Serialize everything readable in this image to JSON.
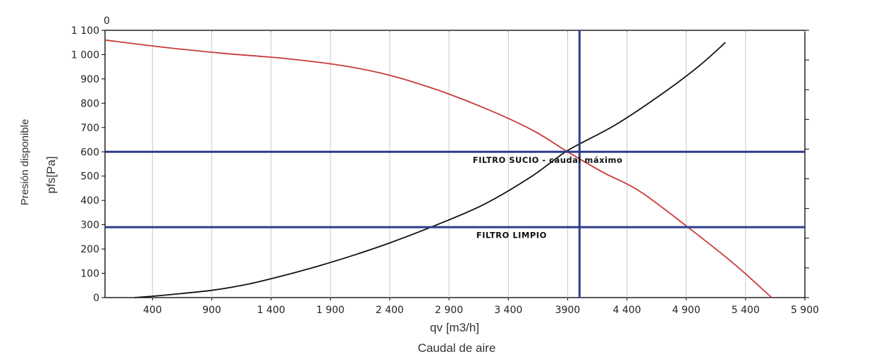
{
  "chart_data": {
    "type": "line",
    "top_axis_label": "0",
    "xlabel": "qv [m3/h]",
    "xlabel_secondary": "Caudal de aire",
    "ylabel": "pfs[Pa]",
    "ylabel_secondary": "Presión disponible",
    "xlim": [
      0,
      5900
    ],
    "ylim": [
      0,
      1100
    ],
    "x_ticks": [
      {
        "value": 400,
        "label": "400"
      },
      {
        "value": 900,
        "label": "900"
      },
      {
        "value": 1400,
        "label": "1 400"
      },
      {
        "value": 1900,
        "label": "1 900"
      },
      {
        "value": 2400,
        "label": "2 400"
      },
      {
        "value": 2900,
        "label": "2 900"
      },
      {
        "value": 3400,
        "label": "3 400"
      },
      {
        "value": 3900,
        "label": "3900"
      },
      {
        "value": 4400,
        "label": "4 400"
      },
      {
        "value": 4900,
        "label": "4 900"
      },
      {
        "value": 5400,
        "label": "5 400"
      },
      {
        "value": 5900,
        "label": "5 900"
      }
    ],
    "y_ticks": [
      {
        "value": 0,
        "label": "0"
      },
      {
        "value": 100,
        "label": "100"
      },
      {
        "value": 200,
        "label": "200"
      },
      {
        "value": 300,
        "label": "300"
      },
      {
        "value": 400,
        "label": "400"
      },
      {
        "value": 500,
        "label": "500"
      },
      {
        "value": 600,
        "label": "600"
      },
      {
        "value": 700,
        "label": "700"
      },
      {
        "value": 800,
        "label": "800"
      },
      {
        "value": 900,
        "label": "900"
      },
      {
        "value": 1000,
        "label": "1 000"
      },
      {
        "value": 1100,
        "label": "1 100"
      }
    ],
    "series": [
      {
        "color": "#c83a3a",
        "x": [
          0,
          500,
          1000,
          1500,
          2000,
          2400,
          2800,
          3200,
          3600,
          3900,
          4200,
          4500,
          4900,
          5300,
          5620
        ],
        "y": [
          1060,
          1030,
          1005,
          985,
          955,
          915,
          855,
          780,
          690,
          600,
          515,
          440,
          295,
          140,
          0
        ]
      },
      {
        "color": "#111111",
        "x": [
          250,
          500,
          900,
          1200,
          1500,
          1800,
          2100,
          2400,
          2800,
          3200,
          3600,
          3900,
          4300,
          4700,
          5000,
          5230
        ],
        "y": [
          0,
          10,
          30,
          55,
          90,
          130,
          175,
          225,
          300,
          385,
          500,
          605,
          710,
          840,
          950,
          1050
        ]
      }
    ],
    "reference_lines": {
      "color": "#2e3c8c",
      "horizontal": [
        600,
        290
      ],
      "vertical": [
        4000
      ]
    },
    "annotations": [
      {
        "text": "FILTRO SUCIO - caudal máximo",
        "x": 3100,
        "y": 555
      },
      {
        "text": "FILTRO LIMPIO",
        "x": 3130,
        "y": 245
      }
    ]
  }
}
